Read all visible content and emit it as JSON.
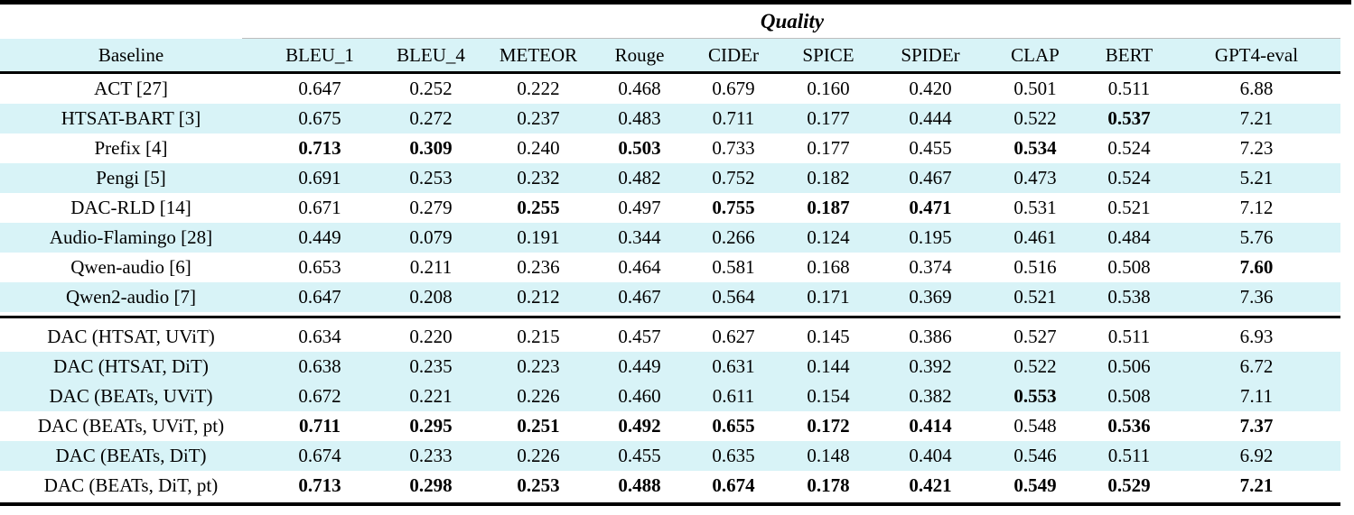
{
  "colors": {
    "row_highlight": "#d8f3f7",
    "rule_color": "#000000",
    "cmidrule_color": "#bdbdbd"
  },
  "table": {
    "group_header": "Quality",
    "columns": [
      "Baseline",
      "BLEU_1",
      "BLEU_4",
      "METEOR",
      "Rouge",
      "CIDEr",
      "SPICE",
      "SPIDEr",
      "CLAP",
      "BERT",
      "GPT4-eval"
    ],
    "groups": [
      {
        "rows": [
          {
            "label": "ACT [27]",
            "shaded": false,
            "values": [
              "0.647",
              "0.252",
              "0.222",
              "0.468",
              "0.679",
              "0.160",
              "0.420",
              "0.501",
              "0.511",
              "6.88"
            ],
            "bold": []
          },
          {
            "label": "HTSAT-BART [3]",
            "shaded": true,
            "values": [
              "0.675",
              "0.272",
              "0.237",
              "0.483",
              "0.711",
              "0.177",
              "0.444",
              "0.522",
              "0.537",
              "7.21"
            ],
            "bold": [
              8
            ]
          },
          {
            "label": "Prefix [4]",
            "shaded": false,
            "values": [
              "0.713",
              "0.309",
              "0.240",
              "0.503",
              "0.733",
              "0.177",
              "0.455",
              "0.534",
              "0.524",
              "7.23"
            ],
            "bold": [
              0,
              1,
              3,
              7
            ]
          },
          {
            "label": "Pengi [5]",
            "shaded": true,
            "values": [
              "0.691",
              "0.253",
              "0.232",
              "0.482",
              "0.752",
              "0.182",
              "0.467",
              "0.473",
              "0.524",
              "5.21"
            ],
            "bold": []
          },
          {
            "label": "DAC-RLD [14]",
            "shaded": false,
            "values": [
              "0.671",
              "0.279",
              "0.255",
              "0.497",
              "0.755",
              "0.187",
              "0.471",
              "0.531",
              "0.521",
              "7.12"
            ],
            "bold": [
              2,
              4,
              5,
              6
            ]
          },
          {
            "label": "Audio-Flamingo [28]",
            "shaded": true,
            "values": [
              "0.449",
              "0.079",
              "0.191",
              "0.344",
              "0.266",
              "0.124",
              "0.195",
              "0.461",
              "0.484",
              "5.76"
            ],
            "bold": []
          },
          {
            "label": "Qwen-audio [6]",
            "shaded": false,
            "values": [
              "0.653",
              "0.211",
              "0.236",
              "0.464",
              "0.581",
              "0.168",
              "0.374",
              "0.516",
              "0.508",
              "7.60"
            ],
            "bold": [
              9
            ]
          },
          {
            "label": "Qwen2-audio [7]",
            "shaded": true,
            "values": [
              "0.647",
              "0.208",
              "0.212",
              "0.467",
              "0.564",
              "0.171",
              "0.369",
              "0.521",
              "0.538",
              "7.36"
            ],
            "bold": []
          }
        ]
      },
      {
        "rows": [
          {
            "label": "DAC (HTSAT, UViT)",
            "shaded": false,
            "values": [
              "0.634",
              "0.220",
              "0.215",
              "0.457",
              "0.627",
              "0.145",
              "0.386",
              "0.527",
              "0.511",
              "6.93"
            ],
            "bold": []
          },
          {
            "label": "DAC (HTSAT, DiT)",
            "shaded": true,
            "values": [
              "0.638",
              "0.235",
              "0.223",
              "0.449",
              "0.631",
              "0.144",
              "0.392",
              "0.522",
              "0.506",
              "6.72"
            ],
            "bold": []
          },
          {
            "label": "DAC (BEATs, UViT)",
            "shaded": true,
            "values": [
              "0.672",
              "0.221",
              "0.226",
              "0.460",
              "0.611",
              "0.154",
              "0.382",
              "0.553",
              "0.508",
              "7.11"
            ],
            "bold": [
              7
            ]
          },
          {
            "label": "DAC (BEATs, UViT, pt)",
            "shaded": false,
            "values": [
              "0.711",
              "0.295",
              "0.251",
              "0.492",
              "0.655",
              "0.172",
              "0.414",
              "0.548",
              "0.536",
              "7.37"
            ],
            "bold": [
              0,
              1,
              2,
              3,
              4,
              5,
              6,
              8,
              9
            ]
          },
          {
            "label": "DAC (BEATs, DiT)",
            "shaded": true,
            "values": [
              "0.674",
              "0.233",
              "0.226",
              "0.455",
              "0.635",
              "0.148",
              "0.404",
              "0.546",
              "0.511",
              "6.92"
            ],
            "bold": []
          },
          {
            "label": "DAC (BEATs, DiT, pt)",
            "shaded": false,
            "values": [
              "0.713",
              "0.298",
              "0.253",
              "0.488",
              "0.674",
              "0.178",
              "0.421",
              "0.549",
              "0.529",
              "7.21"
            ],
            "bold": [
              0,
              1,
              2,
              3,
              4,
              5,
              6,
              7,
              8,
              9
            ]
          }
        ]
      }
    ]
  }
}
